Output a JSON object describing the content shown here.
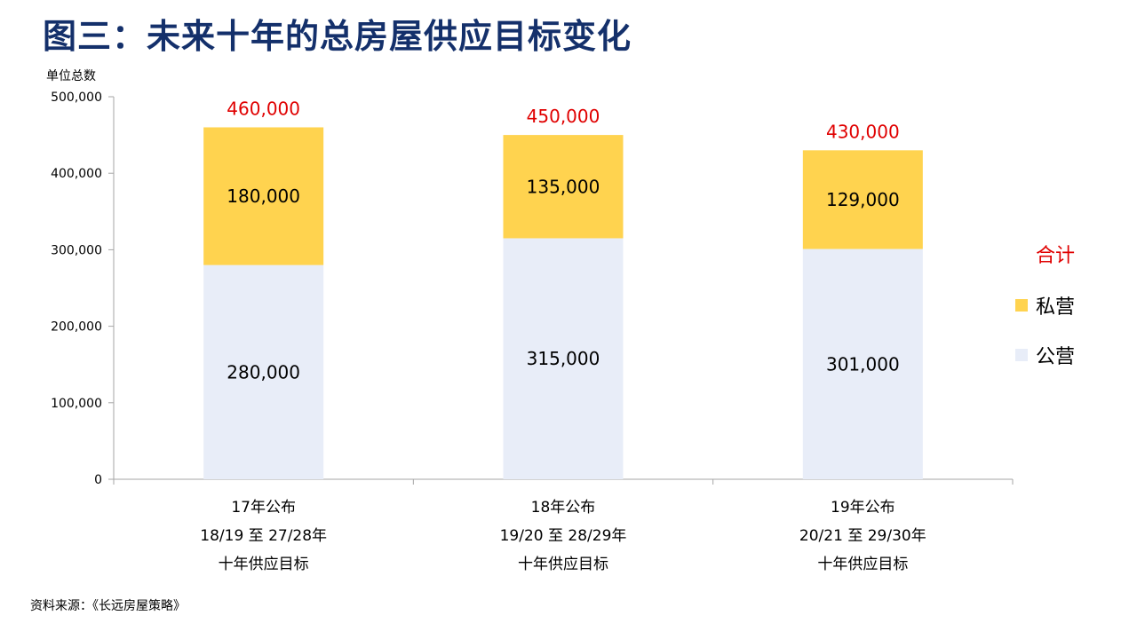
{
  "page": {
    "title": "图三：未来十年的总房屋供应目标变化",
    "source": "资料来源：《长远房屋策略》"
  },
  "legend": {
    "total": "合计",
    "private": "私营",
    "public": "公营"
  },
  "colors": {
    "private": "#ffd34f",
    "public": "#e8edf8",
    "total_label": "#e00000",
    "title": "#14306b",
    "axis": "#a6a6a6"
  },
  "chart_data": {
    "type": "bar",
    "stacked": true,
    "ylabel": "单位总数",
    "ylim": [
      0,
      500000
    ],
    "yticks": [
      0,
      100000,
      200000,
      300000,
      400000,
      500000
    ],
    "ytick_labels": [
      "0",
      "100,000",
      "200,000",
      "300,000",
      "400,000",
      "500,000"
    ],
    "categories": [
      [
        "17年公布",
        "18/19 至 27/28年",
        "十年供应目标"
      ],
      [
        "18年公布",
        "19/20 至 28/29年",
        "十年供应目标"
      ],
      [
        "19年公布",
        "20/21 至 29/30年",
        "十年供应目标"
      ]
    ],
    "series": [
      {
        "name": "公营",
        "values": [
          280000,
          315000,
          301000
        ],
        "labels": [
          "280,000",
          "315,000",
          "301,000"
        ]
      },
      {
        "name": "私营",
        "values": [
          180000,
          135000,
          129000
        ],
        "labels": [
          "180,000",
          "135,000",
          "129,000"
        ]
      }
    ],
    "totals": [
      460000,
      450000,
      430000
    ],
    "total_labels": [
      "460,000",
      "450,000",
      "430,000"
    ],
    "grid": false,
    "legend_position": "right"
  }
}
